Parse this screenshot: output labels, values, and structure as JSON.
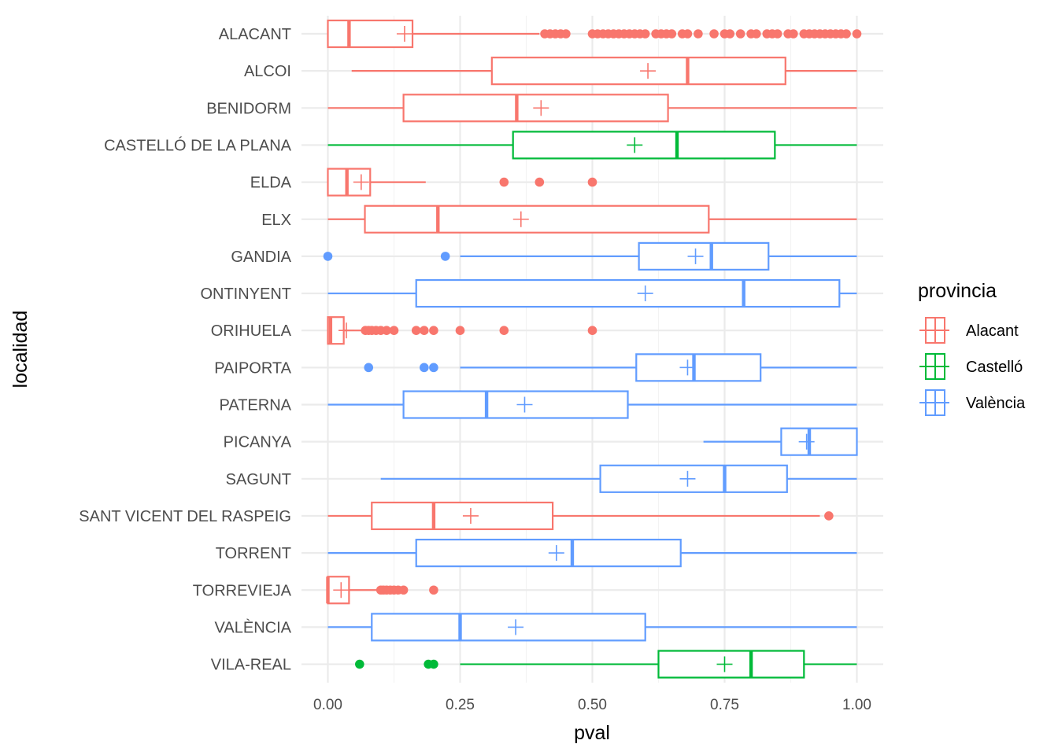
{
  "chart_data": {
    "type": "boxplot",
    "orientation": "horizontal",
    "xlabel": "pval",
    "ylabel": "localidad",
    "xlim": [
      -0.05,
      1.05
    ],
    "x_ticks": [
      {
        "value": 0,
        "label": "0.00"
      },
      {
        "value": 0.25,
        "label": "0.25"
      },
      {
        "value": 0.5,
        "label": "0.50"
      },
      {
        "value": 0.75,
        "label": "0.75"
      },
      {
        "value": 1,
        "label": "1.00"
      }
    ],
    "grid": true,
    "legend": {
      "title": "provincia",
      "placement": "right",
      "entries": [
        {
          "name": "Alacant",
          "color": "#F8766D"
        },
        {
          "name": "Castelló",
          "color": "#00BA38"
        },
        {
          "name": "València",
          "color": "#619CFF"
        }
      ]
    },
    "series": [
      {
        "category": "ALACANT",
        "provincia": "Alacant",
        "whisker_low": 0,
        "q1": 0,
        "median": 0.04,
        "q3": 0.16,
        "whisker_high": 0.4,
        "mean": 0.145,
        "outliers": [
          0.41,
          0.42,
          0.43,
          0.44,
          0.45,
          0.5,
          0.51,
          0.52,
          0.53,
          0.54,
          0.55,
          0.56,
          0.57,
          0.58,
          0.59,
          0.6,
          0.62,
          0.63,
          0.64,
          0.65,
          0.67,
          0.68,
          0.7,
          0.73,
          0.75,
          0.76,
          0.78,
          0.8,
          0.81,
          0.83,
          0.84,
          0.85,
          0.87,
          0.88,
          0.9,
          0.91,
          0.92,
          0.93,
          0.94,
          0.95,
          0.96,
          0.97,
          0.98,
          1.0
        ]
      },
      {
        "category": "ALCOI",
        "provincia": "Alacant",
        "whisker_low": 0.045,
        "q1": 0.31,
        "median": 0.68,
        "q3": 0.865,
        "whisker_high": 1.0,
        "mean": 0.605,
        "outliers": []
      },
      {
        "category": "BENIDORM",
        "provincia": "Alacant",
        "whisker_low": 0,
        "q1": 0.143,
        "median": 0.357,
        "q3": 0.643,
        "whisker_high": 1.0,
        "mean": 0.403,
        "outliers": []
      },
      {
        "category": "CASTELLÓ DE LA PLANA",
        "provincia": "Castelló",
        "whisker_low": 0,
        "q1": 0.35,
        "median": 0.66,
        "q3": 0.845,
        "whisker_high": 1.0,
        "mean": 0.58,
        "outliers": []
      },
      {
        "category": "ELDA",
        "provincia": "Alacant",
        "whisker_low": 0,
        "q1": 0,
        "median": 0.036,
        "q3": 0.08,
        "whisker_high": 0.185,
        "mean": 0.063,
        "outliers": [
          0.333,
          0.4,
          0.5
        ]
      },
      {
        "category": "ELX",
        "provincia": "Alacant",
        "whisker_low": 0,
        "q1": 0.07,
        "median": 0.208,
        "q3": 0.72,
        "whisker_high": 1.0,
        "mean": 0.365,
        "outliers": []
      },
      {
        "category": "GANDIA",
        "provincia": "València",
        "whisker_low": 0.25,
        "q1": 0.588,
        "median": 0.725,
        "q3": 0.833,
        "whisker_high": 1.0,
        "mean": 0.695,
        "outliers": [
          0,
          0.222
        ]
      },
      {
        "category": "ONTINYENT",
        "provincia": "València",
        "whisker_low": 0,
        "q1": 0.167,
        "median": 0.786,
        "q3": 0.967,
        "whisker_high": 1.0,
        "mean": 0.6,
        "outliers": []
      },
      {
        "category": "ORIHUELA",
        "provincia": "Alacant",
        "whisker_low": 0,
        "q1": 0,
        "median": 0.005,
        "q3": 0.03,
        "whisker_high": 0.07,
        "mean": 0.035,
        "outliers": [
          0.071,
          0.077,
          0.083,
          0.091,
          0.1,
          0.111,
          0.125,
          0.167,
          0.182,
          0.2,
          0.25,
          0.333,
          0.5
        ]
      },
      {
        "category": "PAIPORTA",
        "provincia": "València",
        "whisker_low": 0.25,
        "q1": 0.583,
        "median": 0.692,
        "q3": 0.818,
        "whisker_high": 1.0,
        "mean": 0.68,
        "outliers": [
          0.077,
          0.182,
          0.2
        ]
      },
      {
        "category": "PATERNA",
        "provincia": "València",
        "whisker_low": 0,
        "q1": 0.143,
        "median": 0.3,
        "q3": 0.567,
        "whisker_high": 1.0,
        "mean": 0.372,
        "outliers": []
      },
      {
        "category": "PICANYA",
        "provincia": "València",
        "whisker_low": 0.71,
        "q1": 0.857,
        "median": 0.91,
        "q3": 1.0,
        "whisker_high": 1.0,
        "mean": 0.905,
        "outliers": []
      },
      {
        "category": "SAGUNT",
        "provincia": "València",
        "whisker_low": 0.1,
        "q1": 0.515,
        "median": 0.75,
        "q3": 0.868,
        "whisker_high": 1.0,
        "mean": 0.68,
        "outliers": []
      },
      {
        "category": "SANT VICENT DEL RASPEIG",
        "provincia": "Alacant",
        "whisker_low": 0,
        "q1": 0.083,
        "median": 0.2,
        "q3": 0.425,
        "whisker_high": 0.93,
        "mean": 0.27,
        "outliers": [
          0.947
        ]
      },
      {
        "category": "TORRENT",
        "provincia": "València",
        "whisker_low": 0,
        "q1": 0.167,
        "median": 0.462,
        "q3": 0.667,
        "whisker_high": 1.0,
        "mean": 0.432,
        "outliers": []
      },
      {
        "category": "TORREVIEJA",
        "provincia": "Alacant",
        "whisker_low": 0,
        "q1": 0,
        "median": 0,
        "q3": 0.04,
        "whisker_high": 0.095,
        "mean": 0.025,
        "outliers": [
          0.1,
          0.105,
          0.111,
          0.118,
          0.125,
          0.133,
          0.143,
          0.2
        ]
      },
      {
        "category": "VALÈNCIA",
        "provincia": "València",
        "whisker_low": 0,
        "q1": 0.083,
        "median": 0.25,
        "q3": 0.6,
        "whisker_high": 1.0,
        "mean": 0.355,
        "outliers": []
      },
      {
        "category": "VILA-REAL",
        "provincia": "Castelló",
        "whisker_low": 0.25,
        "q1": 0.625,
        "median": 0.8,
        "q3": 0.9,
        "whisker_high": 1.0,
        "mean": 0.75,
        "outliers": [
          0.06,
          0.19,
          0.2
        ]
      }
    ]
  }
}
